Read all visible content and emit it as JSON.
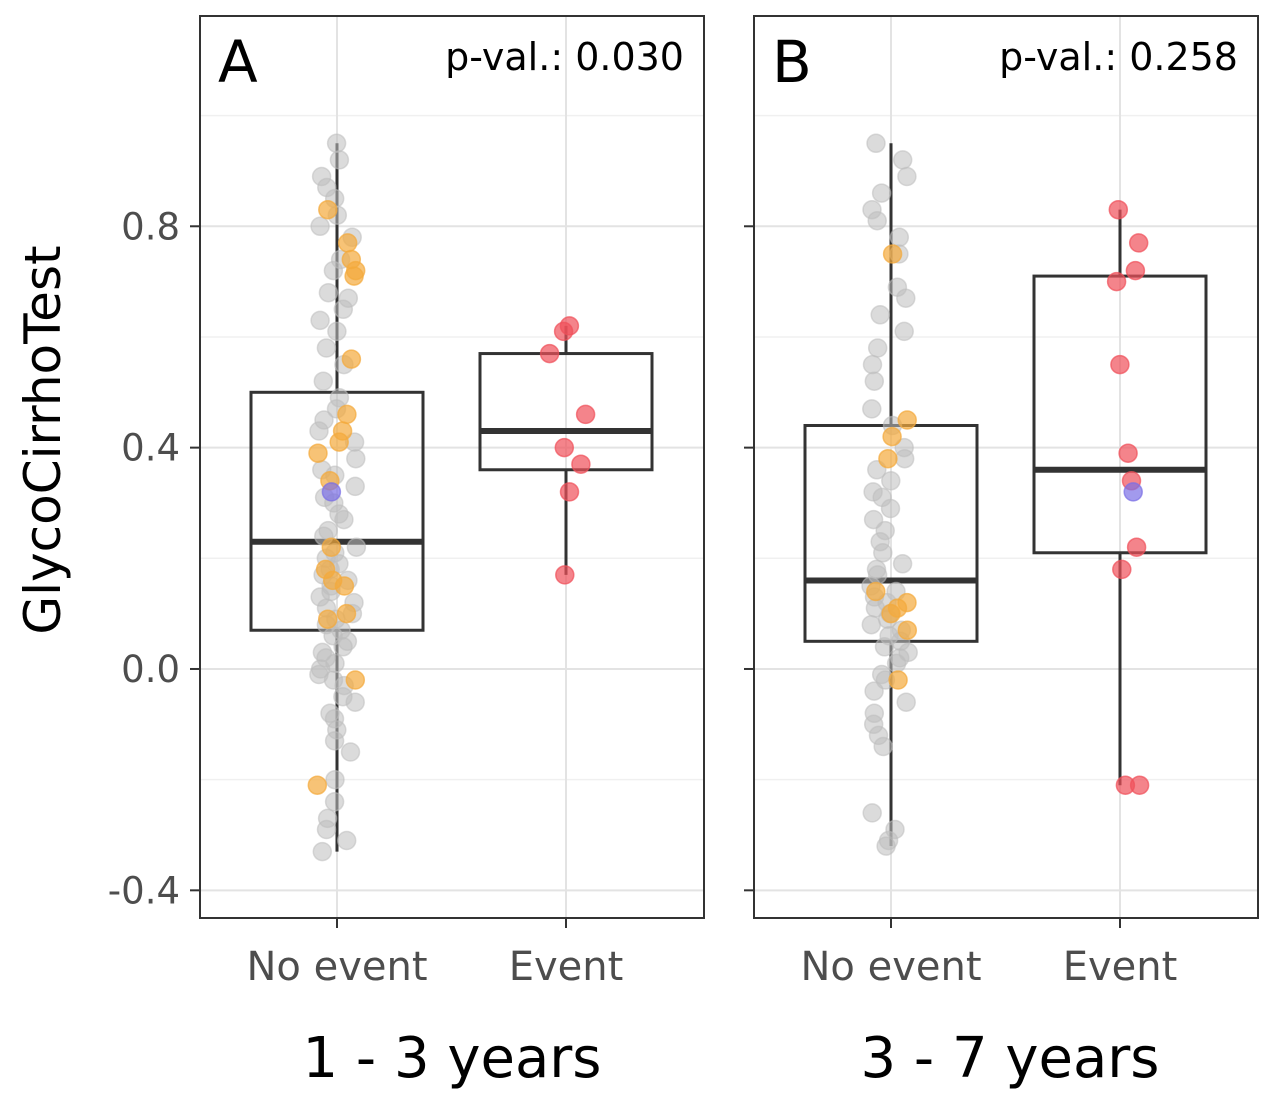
{
  "colors": {
    "grey": "#bdbdbd",
    "orange": "#f4a93c",
    "red": "#f0505a",
    "blue": "#7b6fe6",
    "frame": "#333333"
  },
  "ylabel": "GlycoCirrhoTest",
  "chart_data": [
    {
      "type": "box",
      "panel_label": "A",
      "annotation": "p-val.: 0.030",
      "xlabel": "1 - 3 years",
      "ylabel": "GlycoCirrhoTest",
      "categories": [
        "No event",
        "Event"
      ],
      "ylim": [
        -0.45,
        1.18
      ],
      "yticks": [
        -0.4,
        0.0,
        0.4,
        0.8
      ],
      "ytick_labels": [
        "-0.4",
        "0.0",
        "0.4",
        "0.8"
      ],
      "grid": true,
      "boxes": [
        {
          "category": "No event",
          "whisker_low": -0.33,
          "q1": 0.07,
          "median": 0.23,
          "q3": 0.5,
          "whisker_high": 0.95
        },
        {
          "category": "Event",
          "whisker_low": 0.17,
          "q1": 0.36,
          "median": 0.43,
          "q3": 0.57,
          "whisker_high": 0.62
        }
      ],
      "points": [
        {
          "category": "No event",
          "group": "grey",
          "values": [
            0.95,
            0.92,
            0.89,
            0.87,
            0.85,
            0.82,
            0.8,
            0.78,
            0.74,
            0.72,
            0.68,
            0.67,
            0.65,
            0.63,
            0.61,
            0.58,
            0.55,
            0.52,
            0.49,
            0.47,
            0.45,
            0.43,
            0.41,
            0.38,
            0.36,
            0.35,
            0.33,
            0.31,
            0.3,
            0.28,
            0.27,
            0.25,
            0.24,
            0.22,
            0.21,
            0.2,
            0.19,
            0.18,
            0.17,
            0.16,
            0.15,
            0.14,
            0.13,
            0.12,
            0.11,
            0.1,
            0.09,
            0.08,
            0.07,
            0.06,
            0.05,
            0.04,
            0.03,
            0.02,
            0.01,
            0.0,
            -0.01,
            -0.02,
            -0.03,
            -0.05,
            -0.06,
            -0.08,
            -0.09,
            -0.11,
            -0.13,
            -0.15,
            -0.2,
            -0.24,
            -0.27,
            -0.29,
            -0.31,
            -0.33
          ]
        },
        {
          "category": "No event",
          "group": "orange",
          "values": [
            0.83,
            0.77,
            0.74,
            0.72,
            0.71,
            0.56,
            0.46,
            0.43,
            0.41,
            0.39,
            0.34,
            0.22,
            0.18,
            0.16,
            0.15,
            0.1,
            0.09,
            -0.02,
            -0.21
          ]
        },
        {
          "category": "No event",
          "group": "blue",
          "values": [
            0.32
          ]
        },
        {
          "category": "Event",
          "group": "red",
          "values": [
            0.62,
            0.61,
            0.57,
            0.46,
            0.4,
            0.37,
            0.32,
            0.17
          ]
        }
      ]
    },
    {
      "type": "box",
      "panel_label": "B",
      "annotation": "p-val.: 0.258",
      "xlabel": "3 - 7 years",
      "categories": [
        "No event",
        "Event"
      ],
      "ylim": [
        -0.45,
        1.18
      ],
      "yticks": [
        -0.4,
        0.0,
        0.4,
        0.8
      ],
      "grid": true,
      "boxes": [
        {
          "category": "No event",
          "whisker_low": -0.32,
          "q1": 0.05,
          "median": 0.16,
          "q3": 0.44,
          "whisker_high": 0.95
        },
        {
          "category": "Event",
          "whisker_low": -0.21,
          "q1": 0.21,
          "median": 0.36,
          "q3": 0.71,
          "whisker_high": 0.83
        }
      ],
      "points": [
        {
          "category": "No event",
          "group": "grey",
          "values": [
            0.95,
            0.92,
            0.89,
            0.86,
            0.83,
            0.81,
            0.78,
            0.75,
            0.69,
            0.67,
            0.64,
            0.61,
            0.58,
            0.55,
            0.52,
            0.47,
            0.44,
            0.4,
            0.38,
            0.36,
            0.34,
            0.32,
            0.31,
            0.29,
            0.27,
            0.25,
            0.23,
            0.21,
            0.19,
            0.18,
            0.17,
            0.15,
            0.14,
            0.13,
            0.12,
            0.11,
            0.1,
            0.09,
            0.08,
            0.07,
            0.06,
            0.05,
            0.04,
            0.03,
            0.02,
            0.01,
            -0.01,
            -0.02,
            -0.04,
            -0.06,
            -0.08,
            -0.1,
            -0.12,
            -0.14,
            -0.26,
            -0.29,
            -0.31,
            -0.32
          ]
        },
        {
          "category": "No event",
          "group": "orange",
          "values": [
            0.75,
            0.45,
            0.42,
            0.38,
            0.14,
            0.12,
            0.11,
            0.1,
            0.07,
            -0.02
          ]
        },
        {
          "category": "Event",
          "group": "red",
          "values": [
            0.83,
            0.77,
            0.72,
            0.7,
            0.55,
            0.39,
            0.34,
            0.22,
            0.18,
            -0.21,
            -0.21
          ]
        },
        {
          "category": "Event",
          "group": "blue",
          "values": [
            0.32
          ]
        }
      ]
    }
  ]
}
